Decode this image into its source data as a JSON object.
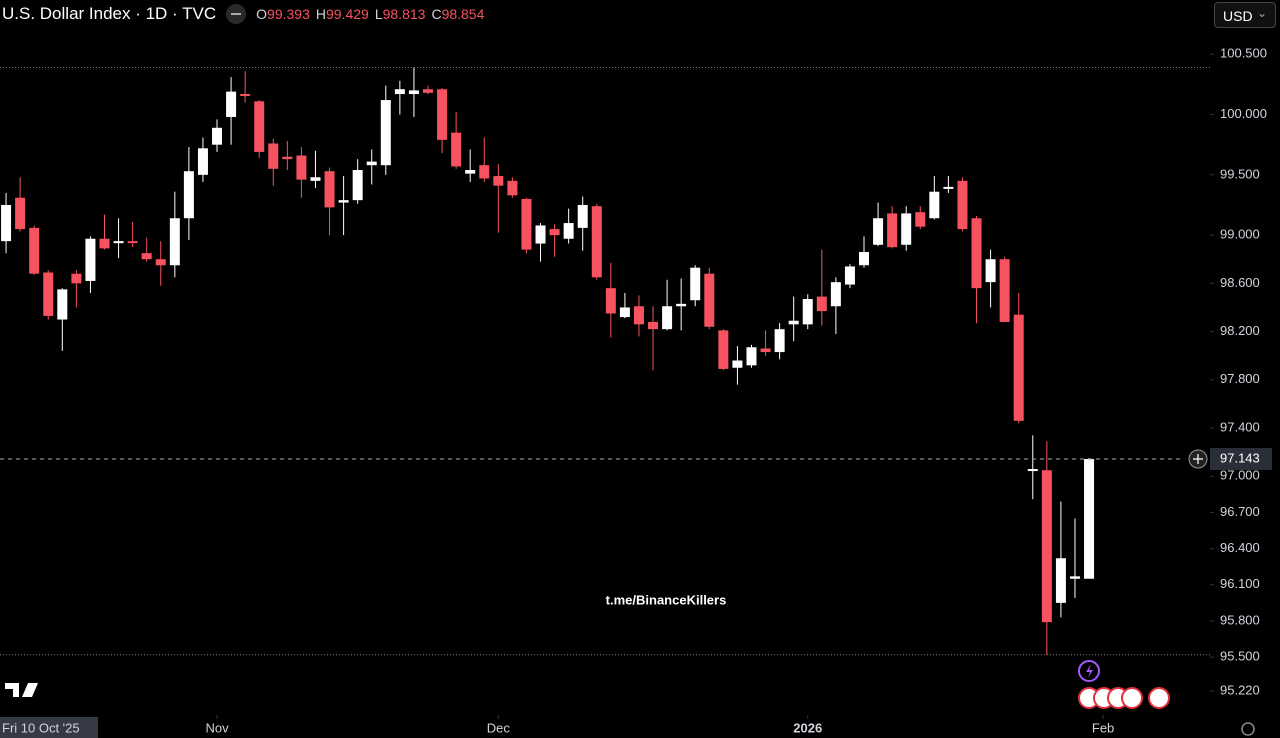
{
  "header": {
    "title": "U.S. Dollar Index · 1D · TVC",
    "ohlc_labels": [
      "O",
      "H",
      "L",
      "C"
    ],
    "ohlc": [
      99.393,
      99.429,
      98.813,
      98.854
    ],
    "currency": "USD"
  },
  "chart_data": {
    "type": "candlestick",
    "up_color": "#ffffff",
    "down_color": "#f7525f",
    "open": [
      98.95,
      99.31,
      99.06,
      98.69,
      98.3,
      98.68,
      98.62,
      98.97,
      98.94,
      98.95,
      98.85,
      98.8,
      98.75,
      99.14,
      99.5,
      99.75,
      99.98,
      100.17,
      100.11,
      99.76,
      99.65,
      99.66,
      99.45,
      99.53,
      99.27,
      99.29,
      99.58,
      99.58,
      100.17,
      100.17,
      100.21,
      100.21,
      99.85,
      99.51,
      99.58,
      99.49,
      99.45,
      99.3,
      98.93,
      99.05,
      98.97,
      99.06,
      99.24,
      98.56,
      98.32,
      98.41,
      98.28,
      98.22,
      98.41,
      98.46,
      98.68,
      98.21,
      97.9,
      97.92,
      98.06,
      98.03,
      98.26,
      98.26,
      98.49,
      98.41,
      98.59,
      98.75,
      98.92,
      99.18,
      98.92,
      99.19,
      99.14,
      99.39,
      99.45,
      99.14,
      98.61,
      98.8,
      98.34,
      97.05,
      97.05,
      95.95,
      96.15,
      96.15
    ],
    "high": [
      99.35,
      99.48,
      99.08,
      98.71,
      98.56,
      98.71,
      98.99,
      99.17,
      99.14,
      99.11,
      98.98,
      98.95,
      99.36,
      99.73,
      99.81,
      99.96,
      100.31,
      100.36,
      100.12,
      99.8,
      99.78,
      99.73,
      99.7,
      99.56,
      99.49,
      99.63,
      99.71,
      100.24,
      100.28,
      100.39,
      100.24,
      100.22,
      100.02,
      99.71,
      99.81,
      99.59,
      99.48,
      99.31,
      99.1,
      99.09,
      99.22,
      99.32,
      99.26,
      98.77,
      98.52,
      98.5,
      98.41,
      98.63,
      98.64,
      98.75,
      98.73,
      98.22,
      98.08,
      98.09,
      98.21,
      98.27,
      98.49,
      98.51,
      98.88,
      98.65,
      98.76,
      98.99,
      99.27,
      99.24,
      99.24,
      99.24,
      99.49,
      99.49,
      99.48,
      99.16,
      98.88,
      98.82,
      98.52,
      97.34,
      97.29,
      96.79,
      96.65,
      97.15
    ],
    "low": [
      98.85,
      99.03,
      98.67,
      98.3,
      98.04,
      98.4,
      98.52,
      98.88,
      98.81,
      98.9,
      98.78,
      98.58,
      98.65,
      98.96,
      99.44,
      99.69,
      99.75,
      100.1,
      99.64,
      99.41,
      99.54,
      99.31,
      99.39,
      99.0,
      99.0,
      99.26,
      99.42,
      99.5,
      100.0,
      99.98,
      100.17,
      99.68,
      99.55,
      99.44,
      99.44,
      99.02,
      99.31,
      98.85,
      98.78,
      98.82,
      98.93,
      98.87,
      98.63,
      98.15,
      98.31,
      98.16,
      97.88,
      98.21,
      98.21,
      98.41,
      98.22,
      97.88,
      97.76,
      97.9,
      98.0,
      97.97,
      98.12,
      98.22,
      98.25,
      98.18,
      98.56,
      98.73,
      98.91,
      98.89,
      98.87,
      99.05,
      99.13,
      99.35,
      99.03,
      98.27,
      98.4,
      98.28,
      97.44,
      96.81,
      95.52,
      95.83,
      95.99,
      96.15
    ],
    "close": [
      99.25,
      99.05,
      98.68,
      98.33,
      98.55,
      98.6,
      98.97,
      98.89,
      98.95,
      98.94,
      98.8,
      98.75,
      99.14,
      99.53,
      99.72,
      99.89,
      100.19,
      100.16,
      99.69,
      99.55,
      99.63,
      99.46,
      99.48,
      99.23,
      99.29,
      99.54,
      99.61,
      100.12,
      100.21,
      100.2,
      100.18,
      99.79,
      99.57,
      99.54,
      99.47,
      99.41,
      99.33,
      98.88,
      99.08,
      99.0,
      99.1,
      99.25,
      98.65,
      98.35,
      98.4,
      98.26,
      98.22,
      98.41,
      98.43,
      98.73,
      98.24,
      97.89,
      97.96,
      98.07,
      98.03,
      98.22,
      98.29,
      98.47,
      98.37,
      98.61,
      98.74,
      98.86,
      99.14,
      98.9,
      99.18,
      99.07,
      99.36,
      99.4,
      99.05,
      98.56,
      98.8,
      98.28,
      97.46,
      97.06,
      95.79,
      96.32,
      96.17,
      97.143
    ],
    "ylim": [
      95.02,
      100.95
    ],
    "yticks": [
      {
        "value": 100.5,
        "label": "100.500"
      },
      {
        "value": 100,
        "label": "100.000"
      },
      {
        "value": 99.5,
        "label": "99.500"
      },
      {
        "value": 99,
        "label": "99.000"
      },
      {
        "value": 98.6,
        "label": "98.600"
      },
      {
        "value": 98.2,
        "label": "98.200"
      },
      {
        "value": 97.8,
        "label": "97.800"
      },
      {
        "value": 97.4,
        "label": "97.400"
      },
      {
        "value": 97,
        "label": "97.000"
      },
      {
        "value": 96.7,
        "label": "96.700"
      },
      {
        "value": 96.4,
        "label": "96.400"
      },
      {
        "value": 96.1,
        "label": "96.100"
      },
      {
        "value": 95.8,
        "label": "95.800"
      },
      {
        "value": 95.5,
        "label": "95.500"
      },
      {
        "value": 95.22,
        "label": "95.220"
      }
    ],
    "xlim": [
      -0.43,
      85.6
    ],
    "xticks": [
      {
        "value": 15,
        "label": "Nov"
      },
      {
        "value": 35,
        "label": "Dec"
      },
      {
        "value": 57,
        "label": "2026"
      },
      {
        "value": 78,
        "label": "Feb"
      }
    ],
    "last_price": 97.143,
    "crosshair_date": "Fri 10 Oct '25",
    "watermark": "t.me/BinanceKillers"
  }
}
